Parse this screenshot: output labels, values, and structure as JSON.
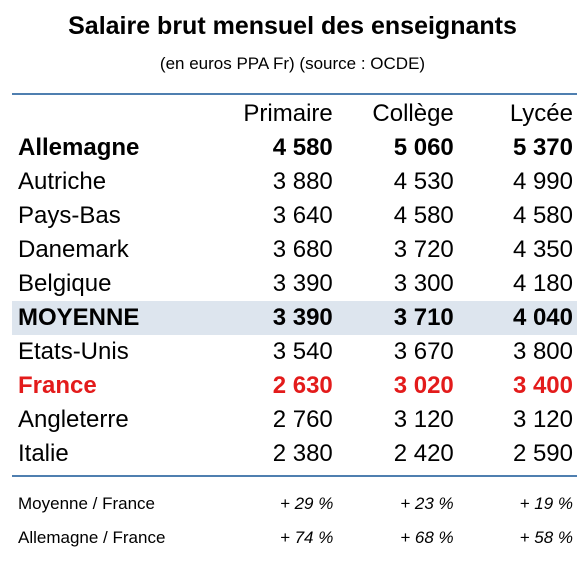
{
  "chart_data": {
    "type": "table",
    "title": "Salaire brut mensuel des enseignants",
    "subtitle": "(en euros PPA Fr) (source : OCDE)",
    "columns": [
      "Primaire",
      "Collège",
      "Lycée"
    ],
    "rows": [
      {
        "country": "Allemagne",
        "values": [
          "4 580",
          "5 060",
          "5 370"
        ],
        "style": "bold"
      },
      {
        "country": "Autriche",
        "values": [
          "3 880",
          "4 530",
          "4 990"
        ],
        "style": "normal"
      },
      {
        "country": "Pays-Bas",
        "values": [
          "3 640",
          "4 580",
          "4 580"
        ],
        "style": "normal"
      },
      {
        "country": "Danemark",
        "values": [
          "3 680",
          "3 720",
          "4 350"
        ],
        "style": "normal"
      },
      {
        "country": "Belgique",
        "values": [
          "3 390",
          "3 300",
          "4 180"
        ],
        "style": "normal"
      },
      {
        "country": "MOYENNE",
        "values": [
          "3 390",
          "3 710",
          "4 040"
        ],
        "style": "avg"
      },
      {
        "country": "Etats-Unis",
        "values": [
          "3 540",
          "3 670",
          "3 800"
        ],
        "style": "normal"
      },
      {
        "country": "France",
        "values": [
          "2 630",
          "3 020",
          "3 400"
        ],
        "style": "france"
      },
      {
        "country": "Angleterre",
        "values": [
          "2 760",
          "3 120",
          "3 120"
        ],
        "style": "normal"
      },
      {
        "country": "Italie",
        "values": [
          "2 380",
          "2 420",
          "2 590"
        ],
        "style": "normal"
      }
    ],
    "ratios": [
      {
        "label": "Moyenne / France",
        "values": [
          "+ 29 %",
          "+ 23 %",
          "+ 19 %"
        ]
      },
      {
        "label": "Allemagne / France",
        "values": [
          "+ 74 %",
          "+ 68 %",
          "+ 58 %"
        ]
      }
    ]
  },
  "colors": {
    "rule": "#4f7fb0",
    "average_row_bg": "#dde5ee",
    "france_text": "#e31b1b"
  }
}
